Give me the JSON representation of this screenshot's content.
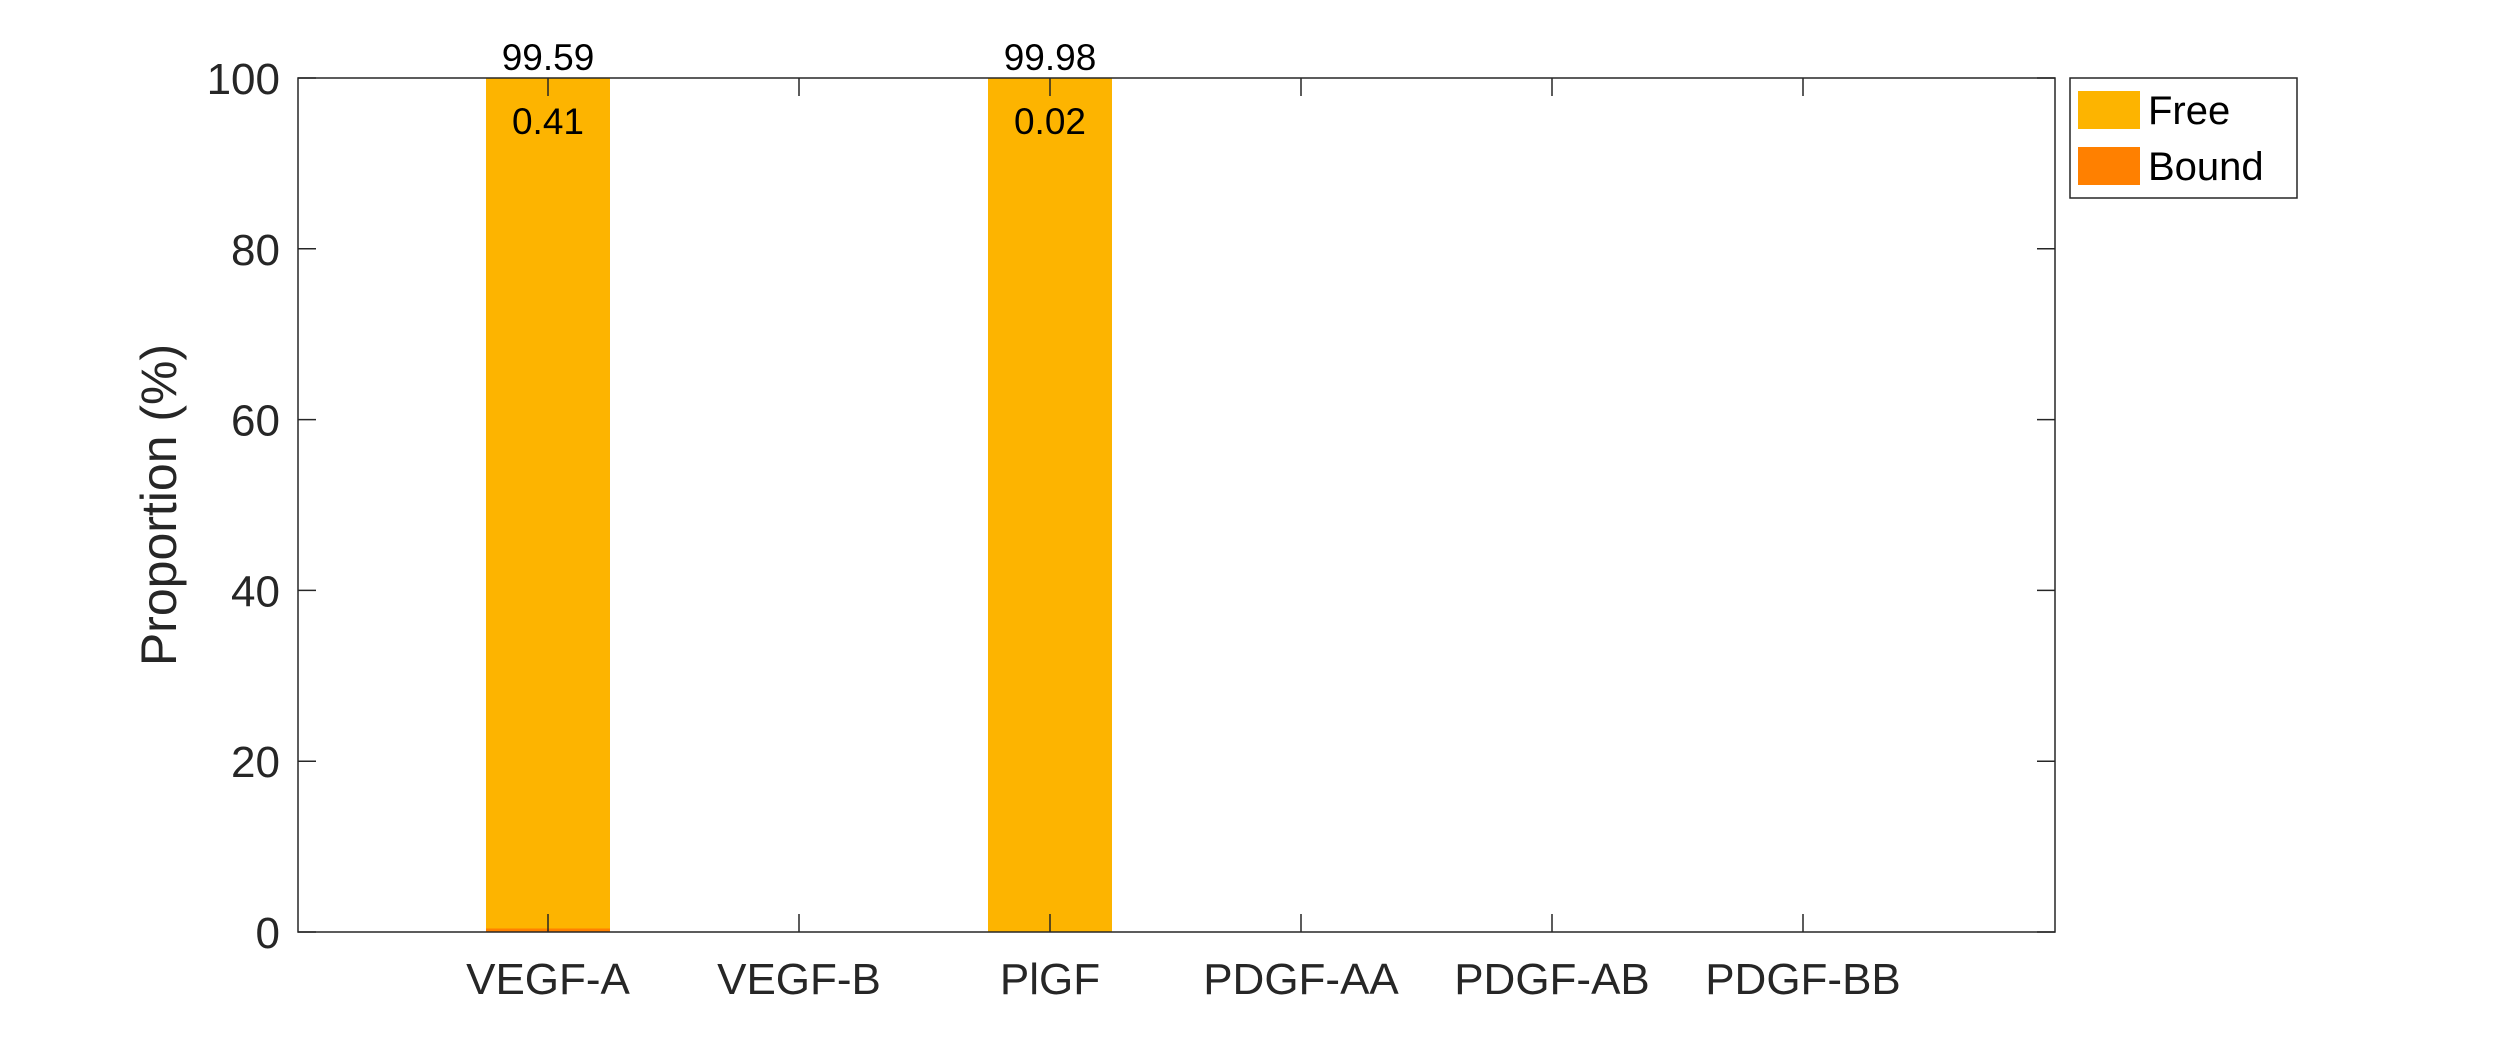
{
  "chart_data": {
    "type": "bar",
    "stacked": true,
    "categories": [
      "VEGF-A",
      "VEGF-B",
      "PlGF",
      "PDGF-AA",
      "PDGF-AB",
      "PDGF-BB"
    ],
    "series": [
      {
        "name": "Free",
        "values": [
          99.59,
          null,
          99.98,
          null,
          null,
          null
        ]
      },
      {
        "name": "Bound",
        "values": [
          0.41,
          null,
          0.02,
          null,
          null,
          null
        ]
      }
    ],
    "data_labels": {
      "Free": [
        "99.59",
        "",
        "99.98",
        "",
        "",
        ""
      ],
      "Bound": [
        "0.41",
        "",
        "0.02",
        "",
        "",
        ""
      ]
    },
    "ylabel": "Proportion (%)",
    "xlabel": "",
    "ylim": [
      0,
      100
    ],
    "yticks": [
      0,
      20,
      40,
      60,
      80,
      100
    ],
    "grid": false,
    "legend": "outside-top-right",
    "colors": {
      "Free": "#FDB400",
      "Bound": "#FF8000"
    }
  }
}
